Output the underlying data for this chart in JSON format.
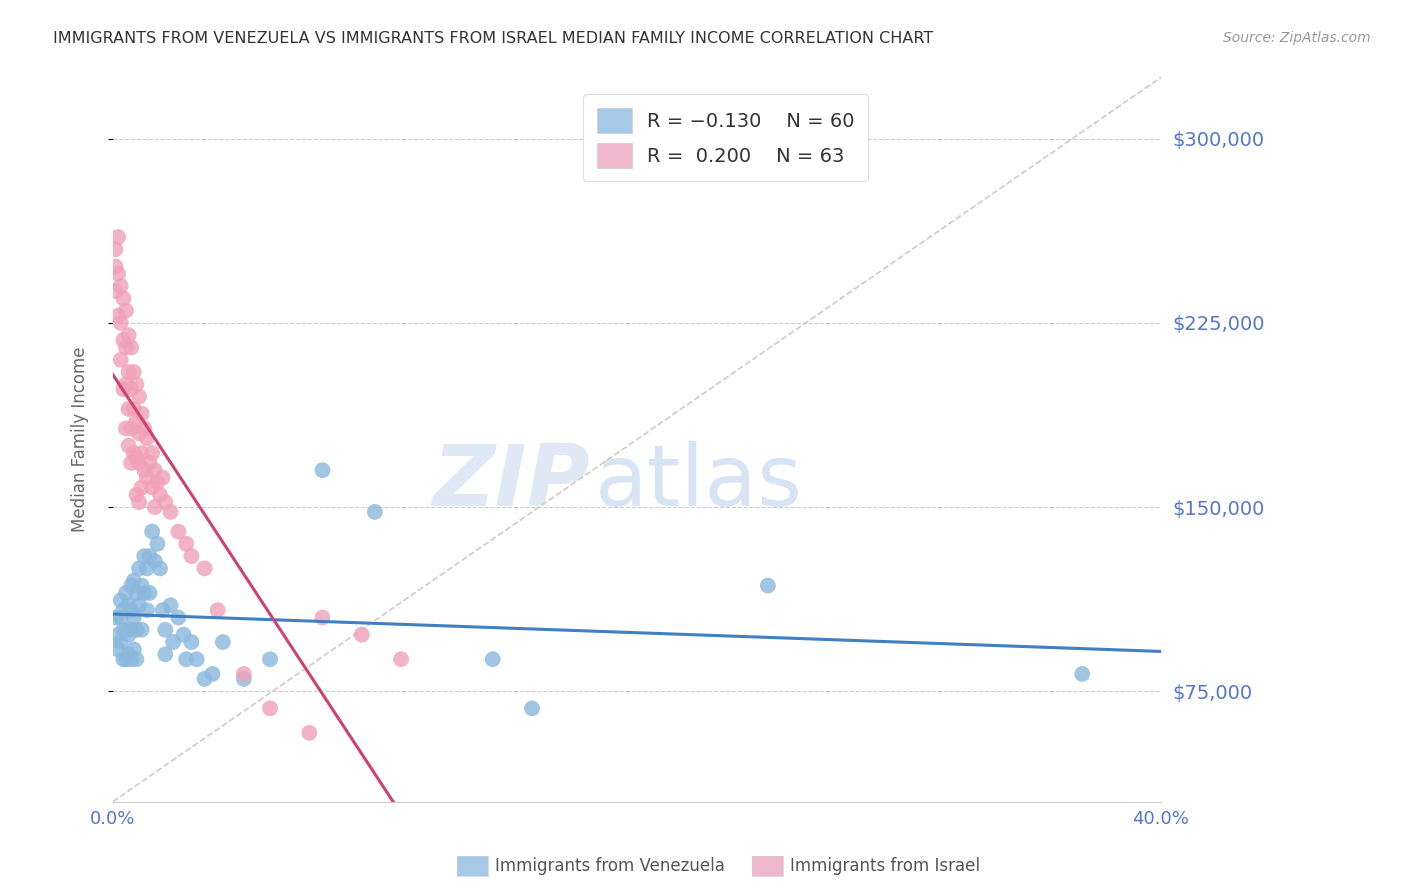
{
  "title": "IMMIGRANTS FROM VENEZUELA VS IMMIGRANTS FROM ISRAEL MEDIAN FAMILY INCOME CORRELATION CHART",
  "source": "Source: ZipAtlas.com",
  "ylabel": "Median Family Income",
  "xlim": [
    0.0,
    0.4
  ],
  "ylim": [
    30000,
    325000
  ],
  "yticks": [
    75000,
    150000,
    225000,
    300000
  ],
  "ytick_labels": [
    "$75,000",
    "$150,000",
    "$225,000",
    "$300,000"
  ],
  "xticks": [
    0.0,
    0.05,
    0.1,
    0.15,
    0.2,
    0.25,
    0.3,
    0.35,
    0.4
  ],
  "xtick_labels": [
    "0.0%",
    "",
    "",
    "",
    "",
    "",
    "",
    "",
    "40.0%"
  ],
  "series1_color": "#8ab8dc",
  "series2_color": "#f0a0b8",
  "trendline1_color": "#4080c0",
  "trendline2_color": "#d04070",
  "dashed_line_color": "#d0b8b8",
  "watermark_zip": "ZIP",
  "watermark_atlas": "atlas",
  "background_color": "#ffffff",
  "title_color": "#333333",
  "tick_color": "#5577cc",
  "ylabel_color": "#666666",
  "legend_patch1_color": "#a8c8e8",
  "legend_patch2_color": "#f0b8cc",
  "venezuela_x": [
    0.001,
    0.002,
    0.002,
    0.003,
    0.003,
    0.003,
    0.004,
    0.004,
    0.004,
    0.005,
    0.005,
    0.005,
    0.006,
    0.006,
    0.006,
    0.007,
    0.007,
    0.007,
    0.007,
    0.008,
    0.008,
    0.008,
    0.009,
    0.009,
    0.009,
    0.01,
    0.01,
    0.011,
    0.011,
    0.012,
    0.012,
    0.013,
    0.013,
    0.014,
    0.014,
    0.015,
    0.016,
    0.017,
    0.018,
    0.019,
    0.02,
    0.02,
    0.022,
    0.023,
    0.025,
    0.027,
    0.028,
    0.03,
    0.032,
    0.035,
    0.038,
    0.042,
    0.05,
    0.06,
    0.08,
    0.1,
    0.145,
    0.16,
    0.25,
    0.37
  ],
  "venezuela_y": [
    105000,
    98000,
    92000,
    112000,
    105000,
    95000,
    108000,
    100000,
    88000,
    115000,
    100000,
    88000,
    110000,
    98000,
    90000,
    118000,
    108000,
    100000,
    88000,
    120000,
    105000,
    92000,
    115000,
    100000,
    88000,
    125000,
    110000,
    118000,
    100000,
    130000,
    115000,
    125000,
    108000,
    130000,
    115000,
    140000,
    128000,
    135000,
    125000,
    108000,
    100000,
    90000,
    110000,
    95000,
    105000,
    98000,
    88000,
    95000,
    88000,
    80000,
    82000,
    95000,
    80000,
    88000,
    165000,
    148000,
    88000,
    68000,
    118000,
    82000
  ],
  "israel_x": [
    0.001,
    0.001,
    0.001,
    0.002,
    0.002,
    0.002,
    0.003,
    0.003,
    0.003,
    0.004,
    0.004,
    0.004,
    0.005,
    0.005,
    0.005,
    0.005,
    0.006,
    0.006,
    0.006,
    0.006,
    0.007,
    0.007,
    0.007,
    0.007,
    0.008,
    0.008,
    0.008,
    0.009,
    0.009,
    0.009,
    0.009,
    0.01,
    0.01,
    0.01,
    0.01,
    0.011,
    0.011,
    0.011,
    0.012,
    0.012,
    0.013,
    0.013,
    0.014,
    0.015,
    0.015,
    0.016,
    0.016,
    0.017,
    0.018,
    0.019,
    0.02,
    0.022,
    0.025,
    0.028,
    0.03,
    0.035,
    0.04,
    0.05,
    0.06,
    0.075,
    0.08,
    0.095,
    0.11
  ],
  "israel_y": [
    255000,
    248000,
    238000,
    260000,
    245000,
    228000,
    240000,
    225000,
    210000,
    235000,
    218000,
    198000,
    230000,
    215000,
    200000,
    182000,
    220000,
    205000,
    190000,
    175000,
    215000,
    198000,
    182000,
    168000,
    205000,
    190000,
    172000,
    200000,
    185000,
    170000,
    155000,
    195000,
    180000,
    168000,
    152000,
    188000,
    172000,
    158000,
    182000,
    165000,
    178000,
    162000,
    168000,
    172000,
    158000,
    165000,
    150000,
    160000,
    155000,
    162000,
    152000,
    148000,
    140000,
    135000,
    130000,
    125000,
    108000,
    82000,
    68000,
    58000,
    105000,
    98000,
    88000
  ],
  "trendline1_x_start": 0.0,
  "trendline1_x_end": 0.4,
  "trendline2_x_start": 0.0,
  "trendline2_x_end": 0.2
}
